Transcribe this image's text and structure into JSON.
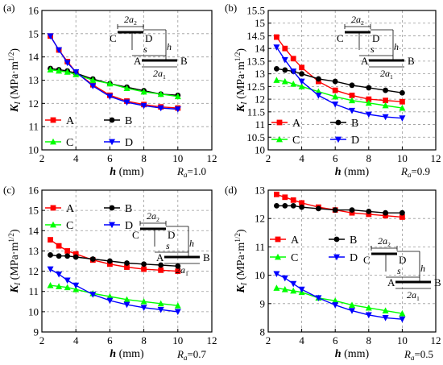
{
  "chart_data": [
    {
      "type": "line",
      "panel_label": "(a)",
      "ratio_label": "R",
      "ratio_sub": "a",
      "ratio_value": "=1.0",
      "xlabel": "h",
      "xunit": "(mm)",
      "ylabel": "K",
      "ylabel_sub": "I",
      "yunit": "(MPa·m",
      "yunit_sup": "1/2",
      "yunit_close": ")",
      "xlim": [
        2,
        12
      ],
      "ylim": [
        10,
        16
      ],
      "xticks": [
        "2",
        "4",
        "6",
        "8",
        "10",
        "12"
      ],
      "yticks": [
        "10",
        "11",
        "12",
        "13",
        "14",
        "15",
        "16"
      ],
      "grid": true,
      "x": [
        2.5,
        3,
        3.5,
        4,
        5,
        6,
        7,
        8,
        9,
        10
      ],
      "series": [
        {
          "name": "A",
          "color": "#ff0000",
          "marker": "square",
          "values": [
            14.9,
            14.3,
            13.8,
            13.35,
            12.8,
            12.35,
            12.1,
            11.95,
            11.85,
            11.8
          ]
        },
        {
          "name": "B",
          "color": "#000000",
          "marker": "circle",
          "values": [
            13.5,
            13.45,
            13.4,
            13.3,
            13.05,
            12.85,
            12.7,
            12.55,
            12.4,
            12.35
          ]
        },
        {
          "name": "C",
          "color": "#00ff00",
          "marker": "triangle",
          "values": [
            13.45,
            13.4,
            13.35,
            13.25,
            13.0,
            12.85,
            12.65,
            12.5,
            12.4,
            12.3
          ]
        },
        {
          "name": "D",
          "color": "#0000ff",
          "marker": "tri-down",
          "values": [
            14.9,
            14.3,
            13.75,
            13.35,
            12.75,
            12.3,
            12.05,
            11.9,
            11.8,
            11.75
          ]
        }
      ],
      "inset": {
        "a2": "2a",
        "a2_sub": "2",
        "a1": "2a",
        "a1_sub": "1",
        "C": "C",
        "D": "D",
        "s": "s",
        "h": "h",
        "A": "A",
        "B": "B"
      }
    },
    {
      "type": "line",
      "panel_label": "(b)",
      "ratio_label": "R",
      "ratio_sub": "a",
      "ratio_value": "=0.9",
      "xlabel": "h",
      "xunit": "(mm)",
      "ylabel": "K",
      "ylabel_sub": "I",
      "yunit": "(MPa·m",
      "yunit_sup": "1/2",
      "yunit_close": ")",
      "xlim": [
        2,
        12
      ],
      "ylim": [
        10,
        15.5
      ],
      "xticks": [
        "2",
        "4",
        "6",
        "8",
        "10",
        "12"
      ],
      "yticks": [
        "10",
        "10.5",
        "11",
        "11.5",
        "12",
        "12.5",
        "13",
        "13.5",
        "14",
        "14.5",
        "15",
        "15.5"
      ],
      "grid": true,
      "x": [
        2.5,
        3,
        3.5,
        4,
        5,
        6,
        7,
        8,
        9,
        10
      ],
      "series": [
        {
          "name": "A",
          "color": "#ff0000",
          "marker": "square",
          "values": [
            14.45,
            14.0,
            13.6,
            13.25,
            12.7,
            12.35,
            12.15,
            12.0,
            11.95,
            11.9
          ]
        },
        {
          "name": "B",
          "color": "#000000",
          "marker": "circle",
          "values": [
            13.2,
            13.15,
            13.1,
            13.0,
            12.8,
            12.7,
            12.55,
            12.45,
            12.35,
            12.25
          ]
        },
        {
          "name": "C",
          "color": "#00ff00",
          "marker": "triangle",
          "values": [
            12.75,
            12.7,
            12.6,
            12.5,
            12.3,
            12.1,
            11.95,
            11.85,
            11.75,
            11.65
          ]
        },
        {
          "name": "D",
          "color": "#0000ff",
          "marker": "tri-down",
          "values": [
            14.05,
            13.55,
            13.1,
            12.7,
            12.15,
            11.8,
            11.55,
            11.4,
            11.3,
            11.25
          ]
        }
      ],
      "inset": {
        "a2": "2a",
        "a2_sub": "2",
        "a1": "2a",
        "a1_sub": "1",
        "C": "C",
        "D": "D",
        "s": "s",
        "h": "h",
        "A": "A",
        "B": "B"
      }
    },
    {
      "type": "line",
      "panel_label": "(c)",
      "ratio_label": "R",
      "ratio_sub": "a",
      "ratio_value": "=0.7",
      "xlabel": "h",
      "xunit": "(mm)",
      "ylabel": "K",
      "ylabel_sub": "I",
      "yunit": "(MPa·m",
      "yunit_sup": "1/2",
      "yunit_close": ")",
      "xlim": [
        2,
        12
      ],
      "ylim": [
        9,
        16
      ],
      "xticks": [
        "2",
        "4",
        "6",
        "8",
        "10",
        "12"
      ],
      "yticks": [
        "9",
        "10",
        "11",
        "12",
        "13",
        "14",
        "15",
        "16"
      ],
      "grid": true,
      "x": [
        2.5,
        3,
        3.5,
        4,
        5,
        6,
        7,
        8,
        9,
        10
      ],
      "series": [
        {
          "name": "A",
          "color": "#ff0000",
          "marker": "square",
          "values": [
            13.55,
            13.25,
            13.0,
            12.85,
            12.55,
            12.35,
            12.2,
            12.1,
            12.05,
            12.0
          ]
        },
        {
          "name": "B",
          "color": "#000000",
          "marker": "circle",
          "values": [
            12.8,
            12.75,
            12.75,
            12.7,
            12.6,
            12.5,
            12.4,
            12.35,
            12.3,
            12.25
          ]
        },
        {
          "name": "C",
          "color": "#00ff00",
          "marker": "triangle",
          "values": [
            11.3,
            11.25,
            11.2,
            11.1,
            10.9,
            10.75,
            10.6,
            10.5,
            10.4,
            10.3
          ]
        },
        {
          "name": "D",
          "color": "#0000ff",
          "marker": "tri-down",
          "values": [
            12.1,
            11.85,
            11.55,
            11.3,
            10.85,
            10.55,
            10.35,
            10.2,
            10.1,
            10.0
          ]
        }
      ],
      "inset": {
        "a2": "2a",
        "a2_sub": "2",
        "a1": "2a",
        "a1_sub": "1",
        "C": "C",
        "D": "D",
        "s": "s",
        "h": "h",
        "A": "A",
        "B": "B"
      }
    },
    {
      "type": "line",
      "panel_label": "(d)",
      "ratio_label": "R",
      "ratio_sub": "a",
      "ratio_value": "=0.5",
      "xlabel": "h",
      "xunit": "(mm)",
      "ylabel": "K",
      "ylabel_sub": "I",
      "yunit": "(MPa·m",
      "yunit_sup": "1/2",
      "yunit_close": ")",
      "xlim": [
        2,
        12
      ],
      "ylim": [
        8,
        13
      ],
      "xticks": [
        "2",
        "4",
        "6",
        "8",
        "10",
        "12"
      ],
      "yticks": [
        "8",
        "9",
        "10",
        "11",
        "12",
        "13"
      ],
      "grid": true,
      "x": [
        2.5,
        3,
        3.5,
        4,
        5,
        6,
        7,
        8,
        9,
        10
      ],
      "series": [
        {
          "name": "A",
          "color": "#ff0000",
          "marker": "square",
          "values": [
            12.85,
            12.75,
            12.65,
            12.55,
            12.4,
            12.3,
            12.2,
            12.15,
            12.1,
            12.05
          ]
        },
        {
          "name": "B",
          "color": "#000000",
          "marker": "circle",
          "values": [
            12.45,
            12.45,
            12.45,
            12.4,
            12.35,
            12.3,
            12.3,
            12.25,
            12.2,
            12.2
          ]
        },
        {
          "name": "C",
          "color": "#00ff00",
          "marker": "triangle",
          "values": [
            9.55,
            9.5,
            9.45,
            9.4,
            9.2,
            9.1,
            8.95,
            8.85,
            8.75,
            8.65
          ]
        },
        {
          "name": "D",
          "color": "#0000ff",
          "marker": "tri-down",
          "values": [
            10.05,
            9.9,
            9.7,
            9.5,
            9.2,
            8.95,
            8.75,
            8.6,
            8.5,
            8.45
          ]
        }
      ],
      "inset": {
        "a2": "2a",
        "a2_sub": "2",
        "a1": "2a",
        "a1_sub": "1",
        "C": "C",
        "D": "D",
        "s": "s",
        "h": "h",
        "A": "A",
        "B": "B"
      }
    }
  ]
}
